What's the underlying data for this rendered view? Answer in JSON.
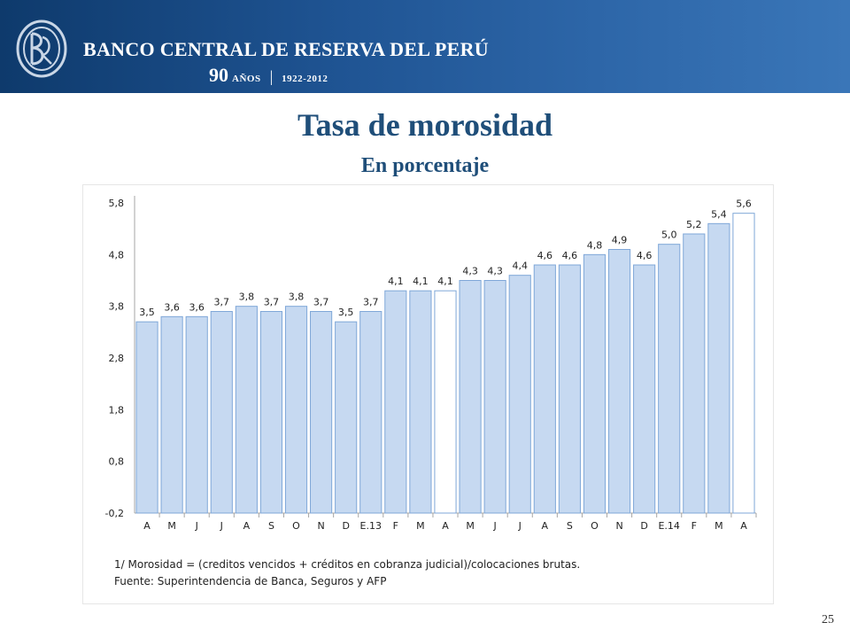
{
  "header": {
    "bank_name": "BANCO CENTRAL DE RESERVA DEL PERÚ",
    "anniversary_number": "90",
    "anniversary_word": "AÑOS",
    "anniversary_years": "1922-2012"
  },
  "slide": {
    "title": "Tasa de morosidad",
    "subtitle": "En porcentaje",
    "note": "1/ Morosidad = (creditos vencidos + créditos en cobranza judicial)/colocaciones brutas.",
    "source": "Fuente: Superintendencia de Banca, Seguros y AFP",
    "page_number": "25"
  },
  "colors": {
    "header_blue": "#1f5493",
    "title_blue": "#1f4e79",
    "bar_fill": "#c6d9f1",
    "bar_stroke": "#7fa7d8",
    "highlight_fill": "#ffffff"
  },
  "chart_data": {
    "type": "bar",
    "categories": [
      "A",
      "M",
      "J",
      "J",
      "A",
      "S",
      "O",
      "N",
      "D",
      "E.13",
      "F",
      "M",
      "A",
      "M",
      "J",
      "J",
      "A",
      "S",
      "O",
      "N",
      "D",
      "E.14",
      "F",
      "M",
      "A"
    ],
    "values": [
      3.5,
      3.6,
      3.6,
      3.7,
      3.8,
      3.7,
      3.8,
      3.7,
      3.5,
      3.7,
      4.1,
      4.1,
      4.1,
      4.3,
      4.3,
      4.4,
      4.6,
      4.6,
      4.8,
      4.9,
      4.6,
      5.0,
      5.2,
      5.4,
      5.6
    ],
    "data_labels": [
      "3,5",
      "3,6",
      "3,6",
      "3,7",
      "3,8",
      "3,7",
      "3,8",
      "3,7",
      "3,5",
      "3,7",
      "4,1",
      "4,1",
      "4,1",
      "4,3",
      "4,3",
      "4,4",
      "4,6",
      "4,6",
      "4,8",
      "4,9",
      "4,6",
      "5,0",
      "5,2",
      "5,4",
      "5,6"
    ],
    "highlighted_indices": [
      12,
      24
    ],
    "y_ticks": [
      -0.2,
      0.8,
      1.8,
      2.8,
      3.8,
      4.8,
      5.8
    ],
    "y_tick_labels": [
      "-0,2",
      "0,8",
      "1,8",
      "2,8",
      "3,8",
      "4,8",
      "5,8"
    ],
    "ylim": [
      -0.2,
      5.8
    ],
    "grid": false,
    "legend": "none"
  }
}
